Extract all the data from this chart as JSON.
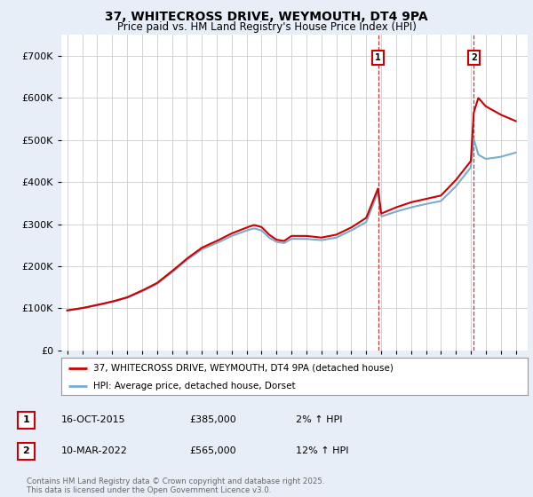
{
  "title": "37, WHITECROSS DRIVE, WEYMOUTH, DT4 9PA",
  "subtitle": "Price paid vs. HM Land Registry's House Price Index (HPI)",
  "ylim": [
    0,
    750000
  ],
  "yticks": [
    0,
    100000,
    200000,
    300000,
    400000,
    500000,
    600000,
    700000
  ],
  "ytick_labels": [
    "£0",
    "£100K",
    "£200K",
    "£300K",
    "£400K",
    "£500K",
    "£600K",
    "£700K"
  ],
  "xlim_start": 1994.6,
  "xlim_end": 2025.8,
  "sale1_year": 2015.79,
  "sale1_price": 385000,
  "sale1_label": "1",
  "sale1_date": "16-OCT-2015",
  "sale1_hpi_pct": "2%",
  "sale2_year": 2022.19,
  "sale2_price": 565000,
  "sale2_label": "2",
  "sale2_date": "10-MAR-2022",
  "sale2_hpi_pct": "12%",
  "line_color_property": "#cc0000",
  "line_color_hpi": "#7aadcc",
  "vline_color": "#cc0000",
  "marker_box_color": "#cc0000",
  "legend_label_property": "37, WHITECROSS DRIVE, WEYMOUTH, DT4 9PA (detached house)",
  "legend_label_hpi": "HPI: Average price, detached house, Dorset",
  "footer": "Contains HM Land Registry data © Crown copyright and database right 2025.\nThis data is licensed under the Open Government Licence v3.0.",
  "background_color": "#e8eef8",
  "plot_bg_color": "#ffffff",
  "grid_color": "#cccccc",
  "title_fontsize": 10,
  "subtitle_fontsize": 8.5
}
